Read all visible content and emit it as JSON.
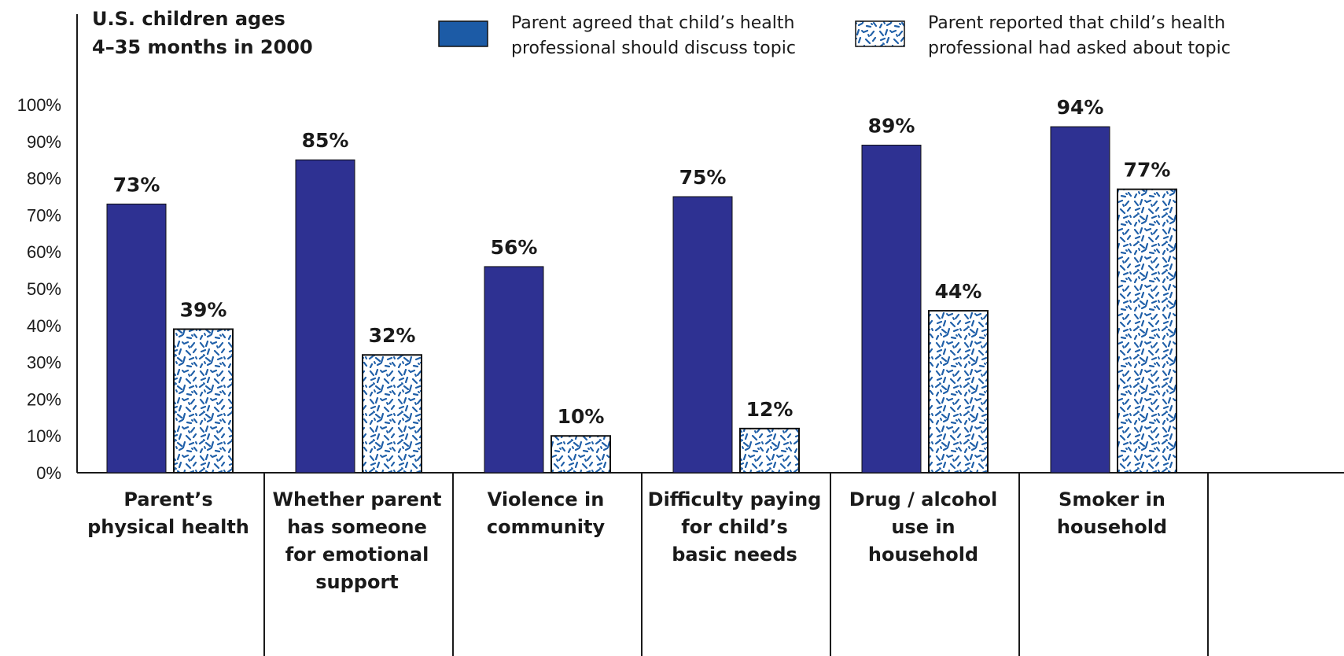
{
  "colors": {
    "series_1": "#2e3192",
    "series_2_pattern": "#1f5fa8",
    "legend_swatch_1": "#1c5ba6"
  },
  "chart_data": {
    "type": "bar",
    "title_lines": [
      "U.S. children ages",
      "4–35 months in 2000"
    ],
    "categories": [
      [
        "Parent’s",
        "physical health"
      ],
      [
        "Whether parent",
        "has someone",
        "for emotional",
        "support"
      ],
      [
        "Violence in",
        "community"
      ],
      [
        "Difficulty paying",
        "for child’s",
        "basic needs"
      ],
      [
        "Drug / alcohol",
        "use in",
        "household"
      ],
      [
        "Smoker in",
        "household"
      ]
    ],
    "series": [
      {
        "name_lines": [
          "Parent agreed that child’s health",
          "professional should discuss topic"
        ],
        "values": [
          73,
          85,
          56,
          75,
          89,
          94
        ],
        "labels": [
          "73%",
          "85%",
          "56%",
          "75%",
          "89%",
          "94%"
        ]
      },
      {
        "name_lines": [
          "Parent reported that child’s health",
          "professional had asked about topic"
        ],
        "values": [
          39,
          32,
          10,
          12,
          44,
          77
        ],
        "labels": [
          "39%",
          "32%",
          "10%",
          "12%",
          "44%",
          "77%"
        ]
      }
    ],
    "y_ticks": [
      "0%",
      "10%",
      "20%",
      "30%",
      "40%",
      "50%",
      "60%",
      "70%",
      "80%",
      "90%",
      "100%"
    ],
    "ylim": [
      0,
      100
    ],
    "grid": false,
    "legend_position": "top"
  }
}
